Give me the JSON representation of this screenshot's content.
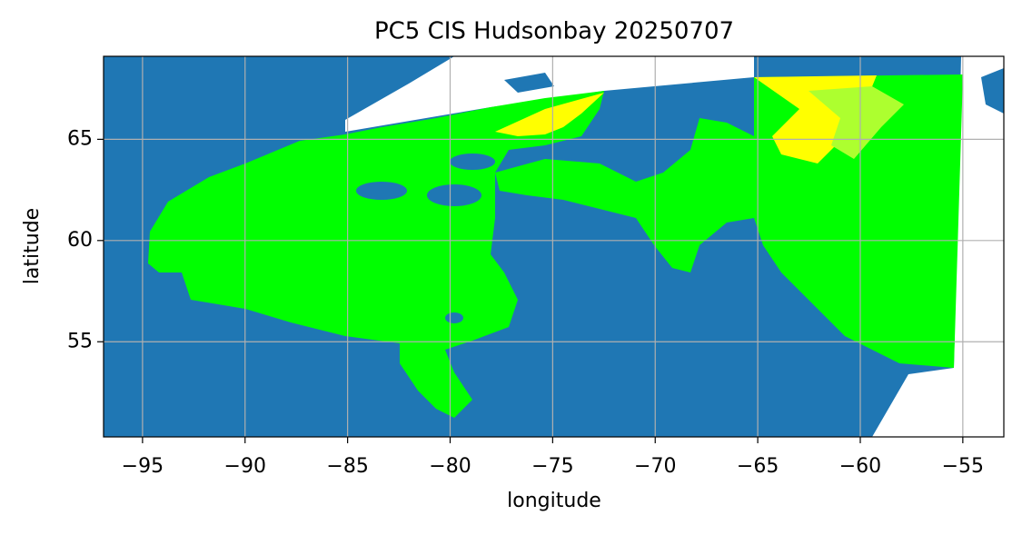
{
  "chart_data": {
    "type": "map",
    "title": "PC5 CIS Hudsonbay 20250707",
    "xlabel": "longitude",
    "ylabel": "latitude",
    "xlim": [
      -96.9,
      -53.0
    ],
    "ylim": [
      50.3,
      69.1
    ],
    "xticks": [
      {
        "value": -95,
        "label": "−95"
      },
      {
        "value": -90,
        "label": "−90"
      },
      {
        "value": -85,
        "label": "−85"
      },
      {
        "value": -80,
        "label": "−80"
      },
      {
        "value": -75,
        "label": "−75"
      },
      {
        "value": -70,
        "label": "−70"
      },
      {
        "value": -65,
        "label": "−65"
      },
      {
        "value": -60,
        "label": "−60"
      },
      {
        "value": -55,
        "label": "−55"
      }
    ],
    "yticks": [
      55,
      60,
      65
    ],
    "grid": true
  }
}
